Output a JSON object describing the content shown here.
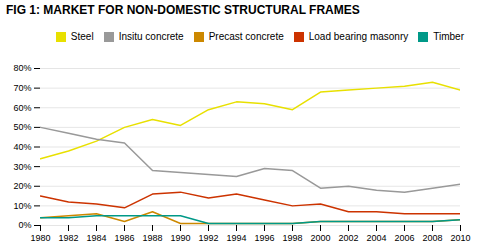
{
  "chart_data": {
    "type": "line",
    "title": "FIG 1: MARKET FOR NON-DOMESTIC STRUCTURAL FRAMES",
    "x": [
      1980,
      1982,
      1984,
      1986,
      1988,
      1990,
      1992,
      1994,
      1996,
      1998,
      2000,
      2002,
      2004,
      2006,
      2008,
      2010
    ],
    "series": [
      {
        "name": "Steel",
        "color": "#e8e000",
        "values": [
          34,
          38,
          43,
          50,
          54,
          51,
          59,
          63,
          62,
          59,
          68,
          69,
          70,
          71,
          73,
          69
        ]
      },
      {
        "name": "Insitu concrete",
        "color": "#999999",
        "values": [
          50,
          47,
          44,
          42,
          28,
          27,
          26,
          25,
          29,
          28,
          19,
          20,
          18,
          17,
          19,
          21
        ]
      },
      {
        "name": "Precast concrete",
        "color": "#cc8800",
        "values": [
          4,
          5,
          6,
          2,
          7,
          1,
          1,
          1,
          1,
          1,
          2,
          2,
          2,
          2,
          2,
          3
        ]
      },
      {
        "name": "Load bearing masonry",
        "color": "#cc3300",
        "values": [
          15,
          12,
          11,
          9,
          16,
          17,
          14,
          16,
          13,
          10,
          11,
          7,
          7,
          6,
          6,
          6
        ]
      },
      {
        "name": "Timber",
        "color": "#009988",
        "values": [
          4,
          4,
          5,
          5,
          5,
          5,
          1,
          1,
          1,
          1,
          2,
          2,
          2,
          2,
          2,
          3
        ]
      }
    ],
    "xlim": [
      1980,
      2010
    ],
    "xticks": [
      1980,
      1982,
      1984,
      1986,
      1988,
      1990,
      1992,
      1994,
      1996,
      1998,
      2000,
      2002,
      2004,
      2006,
      2008,
      2010
    ],
    "ylim": [
      0,
      80
    ],
    "yticks": [
      {
        "value": 0,
        "label": "0%"
      },
      {
        "value": 10,
        "label": "10%"
      },
      {
        "value": 20,
        "label": "20%"
      },
      {
        "value": 30,
        "label": "30%"
      },
      {
        "value": 40,
        "label": "40%"
      },
      {
        "value": 50,
        "label": "50%"
      },
      {
        "value": 60,
        "label": "60%"
      },
      {
        "value": 70,
        "label": "70%"
      },
      {
        "value": 80,
        "label": "80%"
      }
    ],
    "grid": true,
    "legend": "upper right"
  }
}
